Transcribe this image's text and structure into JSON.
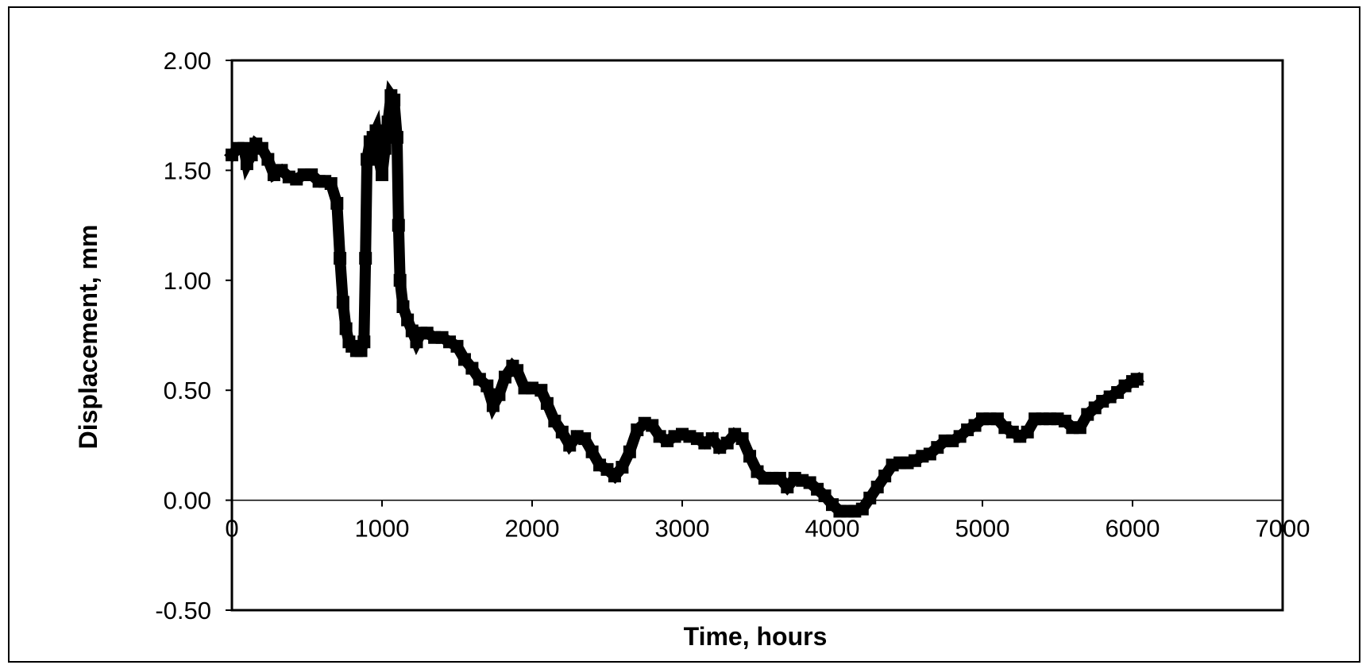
{
  "chart_data": {
    "type": "line",
    "title": "",
    "xlabel": "Time, hours",
    "ylabel": "Displacement, mm",
    "xlim": [
      0,
      7000
    ],
    "ylim": [
      -0.5,
      2.0
    ],
    "x_ticks": [
      0,
      1000,
      2000,
      3000,
      4000,
      5000,
      6000,
      7000
    ],
    "x_tick_labels": [
      "0",
      "1000",
      "2000",
      "3000",
      "4000",
      "5000",
      "6000",
      "7000"
    ],
    "y_ticks": [
      -0.5,
      0.0,
      0.5,
      1.0,
      1.5,
      2.0
    ],
    "y_tick_labels": [
      "-0.50",
      "0.00",
      "0.50",
      "1.00",
      "1.50",
      "2.00"
    ],
    "grid": false,
    "legend": "none",
    "colors": {
      "series": "#000000",
      "axes": "#000000",
      "background": "#ffffff"
    },
    "series": [
      {
        "marker": "square",
        "points": [
          [
            0,
            1.57
          ],
          [
            40,
            1.6
          ],
          [
            80,
            1.6
          ],
          [
            100,
            1.53
          ],
          [
            130,
            1.57
          ],
          [
            160,
            1.62
          ],
          [
            200,
            1.6
          ],
          [
            240,
            1.55
          ],
          [
            280,
            1.48
          ],
          [
            330,
            1.5
          ],
          [
            380,
            1.47
          ],
          [
            430,
            1.46
          ],
          [
            480,
            1.48
          ],
          [
            530,
            1.48
          ],
          [
            580,
            1.45
          ],
          [
            620,
            1.45
          ],
          [
            660,
            1.44
          ],
          [
            700,
            1.35
          ],
          [
            720,
            1.1
          ],
          [
            740,
            0.9
          ],
          [
            760,
            0.78
          ],
          [
            780,
            0.72
          ],
          [
            800,
            0.7
          ],
          [
            830,
            0.68
          ],
          [
            860,
            0.68
          ],
          [
            880,
            0.72
          ],
          [
            890,
            1.1
          ],
          [
            900,
            1.55
          ],
          [
            920,
            1.63
          ],
          [
            940,
            1.65
          ],
          [
            960,
            1.68
          ],
          [
            980,
            1.55
          ],
          [
            1000,
            1.48
          ],
          [
            1020,
            1.6
          ],
          [
            1040,
            1.72
          ],
          [
            1060,
            1.84
          ],
          [
            1080,
            1.82
          ],
          [
            1100,
            1.65
          ],
          [
            1110,
            1.25
          ],
          [
            1120,
            1.0
          ],
          [
            1140,
            0.88
          ],
          [
            1170,
            0.82
          ],
          [
            1200,
            0.77
          ],
          [
            1230,
            0.72
          ],
          [
            1260,
            0.76
          ],
          [
            1300,
            0.76
          ],
          [
            1350,
            0.74
          ],
          [
            1400,
            0.74
          ],
          [
            1450,
            0.72
          ],
          [
            1500,
            0.7
          ],
          [
            1550,
            0.64
          ],
          [
            1600,
            0.6
          ],
          [
            1650,
            0.55
          ],
          [
            1700,
            0.52
          ],
          [
            1740,
            0.43
          ],
          [
            1780,
            0.48
          ],
          [
            1820,
            0.56
          ],
          [
            1870,
            0.61
          ],
          [
            1900,
            0.59
          ],
          [
            1950,
            0.51
          ],
          [
            2000,
            0.51
          ],
          [
            2060,
            0.5
          ],
          [
            2100,
            0.44
          ],
          [
            2150,
            0.36
          ],
          [
            2200,
            0.31
          ],
          [
            2250,
            0.25
          ],
          [
            2300,
            0.29
          ],
          [
            2350,
            0.28
          ],
          [
            2400,
            0.22
          ],
          [
            2450,
            0.16
          ],
          [
            2500,
            0.14
          ],
          [
            2550,
            0.11
          ],
          [
            2600,
            0.15
          ],
          [
            2650,
            0.22
          ],
          [
            2700,
            0.32
          ],
          [
            2750,
            0.35
          ],
          [
            2800,
            0.34
          ],
          [
            2850,
            0.29
          ],
          [
            2900,
            0.27
          ],
          [
            2950,
            0.29
          ],
          [
            3000,
            0.3
          ],
          [
            3050,
            0.29
          ],
          [
            3100,
            0.28
          ],
          [
            3150,
            0.26
          ],
          [
            3200,
            0.28
          ],
          [
            3250,
            0.24
          ],
          [
            3300,
            0.26
          ],
          [
            3350,
            0.3
          ],
          [
            3400,
            0.28
          ],
          [
            3450,
            0.2
          ],
          [
            3500,
            0.13
          ],
          [
            3550,
            0.1
          ],
          [
            3600,
            0.1
          ],
          [
            3650,
            0.1
          ],
          [
            3700,
            0.06
          ],
          [
            3750,
            0.1
          ],
          [
            3800,
            0.09
          ],
          [
            3850,
            0.08
          ],
          [
            3900,
            0.05
          ],
          [
            3950,
            0.02
          ],
          [
            4000,
            -0.02
          ],
          [
            4050,
            -0.05
          ],
          [
            4100,
            -0.05
          ],
          [
            4150,
            -0.05
          ],
          [
            4200,
            -0.04
          ],
          [
            4250,
            0.01
          ],
          [
            4300,
            0.06
          ],
          [
            4350,
            0.11
          ],
          [
            4400,
            0.16
          ],
          [
            4450,
            0.17
          ],
          [
            4500,
            0.17
          ],
          [
            4550,
            0.18
          ],
          [
            4600,
            0.2
          ],
          [
            4650,
            0.21
          ],
          [
            4700,
            0.24
          ],
          [
            4750,
            0.27
          ],
          [
            4800,
            0.27
          ],
          [
            4850,
            0.29
          ],
          [
            4900,
            0.32
          ],
          [
            4950,
            0.34
          ],
          [
            5000,
            0.37
          ],
          [
            5050,
            0.37
          ],
          [
            5100,
            0.37
          ],
          [
            5150,
            0.33
          ],
          [
            5200,
            0.31
          ],
          [
            5250,
            0.29
          ],
          [
            5300,
            0.31
          ],
          [
            5350,
            0.37
          ],
          [
            5400,
            0.37
          ],
          [
            5450,
            0.37
          ],
          [
            5500,
            0.37
          ],
          [
            5550,
            0.36
          ],
          [
            5600,
            0.33
          ],
          [
            5650,
            0.33
          ],
          [
            5700,
            0.39
          ],
          [
            5750,
            0.42
          ],
          [
            5800,
            0.45
          ],
          [
            5850,
            0.47
          ],
          [
            5900,
            0.49
          ],
          [
            5950,
            0.52
          ],
          [
            6000,
            0.54
          ],
          [
            6030,
            0.55
          ]
        ]
      }
    ]
  }
}
